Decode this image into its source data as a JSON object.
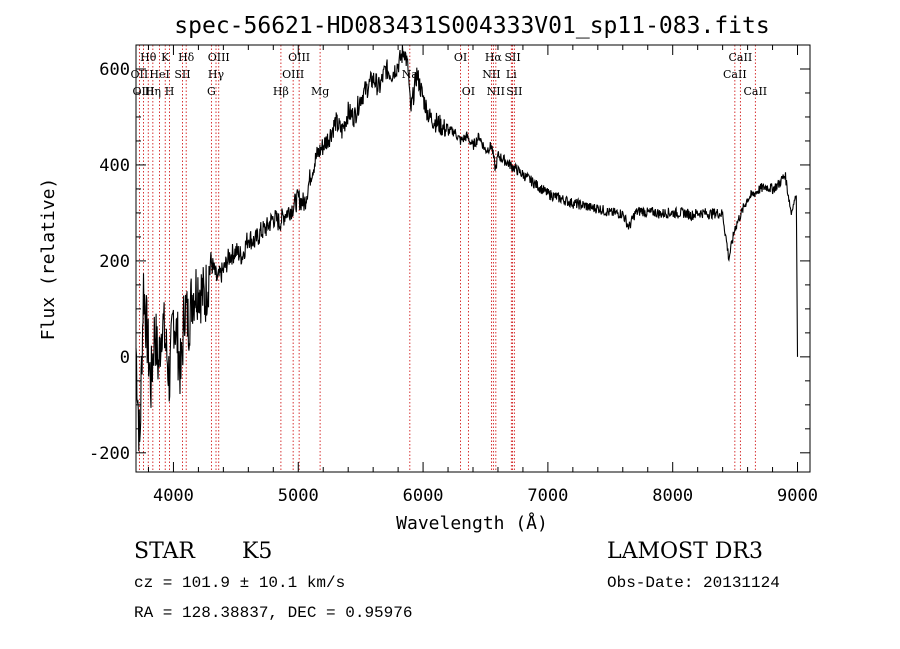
{
  "chart_data": {
    "type": "line",
    "title": "spec-56621-HD083431S004333V01_sp11-083.fits",
    "xlabel": "Wavelength (Å)",
    "ylabel": "Flux (relative)",
    "xlim": [
      3700,
      9100
    ],
    "ylim": [
      -240,
      650
    ],
    "xticks": [
      4000,
      5000,
      6000,
      7000,
      8000,
      9000
    ],
    "yticks": [
      -200,
      0,
      200,
      400,
      600
    ],
    "series": [
      {
        "name": "flux",
        "x": [
          3700,
          3730,
          3760,
          3790,
          3820,
          3850,
          3880,
          3910,
          3940,
          3970,
          4000,
          4030,
          4060,
          4090,
          4120,
          4150,
          4200,
          4250,
          4300,
          4350,
          4400,
          4450,
          4500,
          4550,
          4600,
          4650,
          4700,
          4750,
          4800,
          4850,
          4900,
          4950,
          5000,
          5050,
          5100,
          5150,
          5200,
          5250,
          5300,
          5350,
          5400,
          5450,
          5500,
          5550,
          5600,
          5650,
          5700,
          5750,
          5800,
          5850,
          5880,
          5900,
          5950,
          6000,
          6050,
          6100,
          6150,
          6200,
          6250,
          6300,
          6350,
          6400,
          6450,
          6500,
          6550,
          6580,
          6600,
          6650,
          6700,
          6750,
          6800,
          6850,
          6900,
          6950,
          7000,
          7050,
          7100,
          7150,
          7200,
          7250,
          7300,
          7350,
          7400,
          7450,
          7500,
          7550,
          7600,
          7650,
          7700,
          7750,
          7800,
          7850,
          7900,
          7950,
          8000,
          8050,
          8100,
          8150,
          8200,
          8250,
          8300,
          8350,
          8400,
          8450,
          8500,
          8550,
          8600,
          8650,
          8700,
          8750,
          8800,
          8850,
          8900,
          8950,
          8990,
          9000
        ],
        "y": [
          20,
          -190,
          150,
          40,
          -60,
          60,
          -20,
          80,
          20,
          -50,
          90,
          40,
          -40,
          110,
          70,
          130,
          150,
          120,
          200,
          160,
          180,
          210,
          220,
          210,
          250,
          240,
          260,
          270,
          290,
          280,
          300,
          310,
          330,
          320,
          380,
          420,
          440,
          460,
          490,
          470,
          510,
          500,
          540,
          560,
          580,
          560,
          600,
          590,
          610,
          640,
          600,
          510,
          590,
          540,
          500,
          490,
          480,
          470,
          470,
          450,
          460,
          440,
          460,
          430,
          440,
          390,
          420,
          410,
          400,
          390,
          380,
          370,
          360,
          350,
          340,
          335,
          330,
          325,
          320,
          318,
          315,
          310,
          310,
          305,
          300,
          300,
          298,
          270,
          300,
          305,
          300,
          302,
          298,
          300,
          300,
          300,
          300,
          295,
          300,
          300,
          298,
          300,
          298,
          205,
          270,
          300,
          330,
          340,
          350,
          355,
          350,
          360,
          380,
          300,
          340,
          0
        ]
      }
    ],
    "lines": [
      {
        "name": "Hθ",
        "w": 3798
      },
      {
        "name": "OII",
        "w": 3727
      },
      {
        "name": "OIII",
        "w": 3760
      },
      {
        "name": "Hη",
        "w": 3835
      },
      {
        "name": "HeI",
        "w": 3889
      },
      {
        "name": "K",
        "w": 3934
      },
      {
        "name": "H",
        "w": 3969
      },
      {
        "name": "SII",
        "w": 4072
      },
      {
        "name": "Hδ",
        "w": 4102
      },
      {
        "name": "G",
        "w": 4304
      },
      {
        "name": "Hγ",
        "w": 4341
      },
      {
        "name": "OIII",
        "w": 4363
      },
      {
        "name": "Hβ",
        "w": 4861
      },
      {
        "name": "OIII",
        "w": 4959
      },
      {
        "name": "OIII",
        "w": 5007
      },
      {
        "name": "Mg",
        "w": 5175
      },
      {
        "name": "Na",
        "w": 5894
      },
      {
        "name": "OI",
        "w": 6300
      },
      {
        "name": "OI",
        "w": 6363
      },
      {
        "name": "NII",
        "w": 6548
      },
      {
        "name": "Hα",
        "w": 6563
      },
      {
        "name": "NII",
        "w": 6583
      },
      {
        "name": "Li",
        "w": 6707
      },
      {
        "name": "SII",
        "w": 6717
      },
      {
        "name": "SII",
        "w": 6731
      },
      {
        "name": "CaII",
        "w": 8498
      },
      {
        "name": "CaII",
        "w": 8542
      },
      {
        "name": "CaII",
        "w": 8662
      }
    ],
    "line_labels": [
      {
        "text": "Hθ",
        "w": 3798,
        "row": 0
      },
      {
        "text": "K",
        "w": 3934,
        "row": 0
      },
      {
        "text": "Hδ",
        "w": 4102,
        "row": 0
      },
      {
        "text": "OIII",
        "w": 4363,
        "row": 0
      },
      {
        "text": "OIII",
        "w": 5007,
        "row": 0
      },
      {
        "text": "OI",
        "w": 6300,
        "row": 0
      },
      {
        "text": "Hα",
        "w": 6563,
        "row": 0
      },
      {
        "text": "SII",
        "w": 6717,
        "row": 0
      },
      {
        "text": "CaII",
        "w": 8542,
        "row": 0
      },
      {
        "text": "OII",
        "w": 3727,
        "row": 1
      },
      {
        "text": "HeI",
        "w": 3889,
        "row": 1
      },
      {
        "text": "SII",
        "w": 4072,
        "row": 1
      },
      {
        "text": "Hγ",
        "w": 4341,
        "row": 1
      },
      {
        "text": "OIII",
        "w": 4959,
        "row": 1
      },
      {
        "text": "Na",
        "w": 5894,
        "row": 1
      },
      {
        "text": "NII",
        "w": 6548,
        "row": 1
      },
      {
        "text": "Li",
        "w": 6707,
        "row": 1
      },
      {
        "text": "CaII",
        "w": 8498,
        "row": 1
      },
      {
        "text": "OIII",
        "w": 3760,
        "row": 2
      },
      {
        "text": "Hη",
        "w": 3835,
        "row": 2
      },
      {
        "text": "H",
        "w": 3969,
        "row": 2
      },
      {
        "text": "G",
        "w": 4304,
        "row": 2
      },
      {
        "text": "Hβ",
        "w": 4861,
        "row": 2
      },
      {
        "text": "Mg",
        "w": 5175,
        "row": 2
      },
      {
        "text": "OI",
        "w": 6363,
        "row": 2
      },
      {
        "text": "NII",
        "w": 6583,
        "row": 2
      },
      {
        "text": "SII",
        "w": 6731,
        "row": 2
      },
      {
        "text": "CaII",
        "w": 8662,
        "row": 2
      }
    ],
    "colors": {
      "spectrum": "#000000",
      "lines": "#cc0000",
      "axes": "#000000"
    }
  },
  "info": {
    "object_class": "STAR",
    "subclass": "K5",
    "survey": "LAMOST DR3",
    "cz": "cz = 101.9 ± 10.1 km/s",
    "obs_date": "Obs-Date: 20131124",
    "radec": "RA = 128.38837, DEC =    0.95976"
  }
}
